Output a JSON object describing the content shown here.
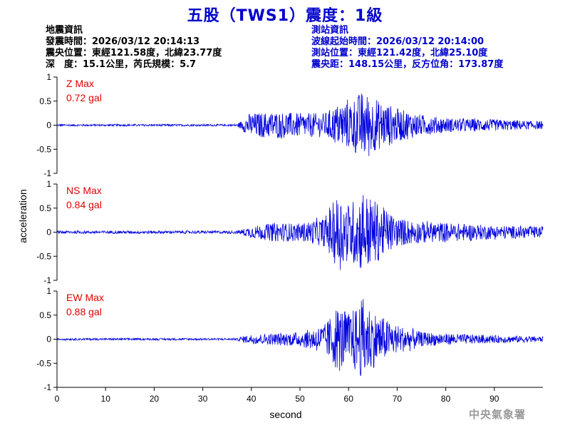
{
  "title": "五股（TWS1）震度：1級",
  "event_info": {
    "heading": "地震資訊",
    "origin_time": "發震時間：2026/03/12 20:14:13",
    "epicenter": "震央位置：東經121.58度，北緯23.77度",
    "depth_magnitude": "深　度：15.1公里，芮氏規模：5.7"
  },
  "station_info": {
    "heading": "測站資訊",
    "wave_start": "波線起始時間：2026/03/12 20:14:00",
    "location": "測站位置：東經121.42度，北緯25.10度",
    "distance": "震央距：148.15公里，反方位角：173.87度"
  },
  "watermark": "中央氣象署",
  "colors": {
    "title": "#0000cc",
    "trace": "#0000dd",
    "max_label": "#e00000",
    "station_text": "#0000cc"
  },
  "chart_data": {
    "type": "line",
    "xlabel": "second",
    "ylabel": "acceleration",
    "xlim": [
      0,
      100
    ],
    "ylim": [
      -1,
      1
    ],
    "xticks": [
      0,
      10,
      20,
      30,
      40,
      50,
      60,
      70,
      80,
      90
    ],
    "yticks": [
      1,
      0.5,
      0,
      -0.5,
      -1
    ],
    "xtick_labels": [
      "0",
      "10",
      "20",
      "30",
      "40",
      "50",
      "60",
      "70",
      "80",
      "90"
    ],
    "ytick_labels": [
      "1",
      "0.5",
      "0",
      "-0.5",
      "-1"
    ],
    "grid": false,
    "panels": [
      {
        "component": "Z",
        "label": "Z Max",
        "max_value": "0.72 gal",
        "envelope": {
          "x": [
            0,
            37,
            38,
            40,
            45,
            50,
            55,
            58,
            60,
            62,
            63,
            65,
            68,
            70,
            75,
            80,
            90,
            100
          ],
          "y": [
            0.02,
            0.02,
            0.1,
            0.25,
            0.28,
            0.25,
            0.25,
            0.45,
            0.5,
            0.65,
            0.72,
            0.55,
            0.45,
            0.35,
            0.22,
            0.15,
            0.12,
            0.08
          ]
        }
      },
      {
        "component": "NS",
        "label": "NS Max",
        "max_value": "0.84 gal",
        "envelope": {
          "x": [
            0,
            37,
            38,
            40,
            45,
            50,
            55,
            58,
            60,
            62,
            63,
            65,
            68,
            70,
            75,
            80,
            90,
            100
          ],
          "y": [
            0.03,
            0.03,
            0.06,
            0.12,
            0.2,
            0.18,
            0.3,
            0.82,
            0.6,
            0.75,
            0.84,
            0.7,
            0.45,
            0.3,
            0.22,
            0.2,
            0.14,
            0.12
          ]
        }
      },
      {
        "component": "EW",
        "label": "EW Max",
        "max_value": "0.88 gal",
        "envelope": {
          "x": [
            0,
            37,
            38,
            40,
            45,
            50,
            55,
            58,
            60,
            62,
            63,
            65,
            68,
            70,
            75,
            80,
            90,
            100
          ],
          "y": [
            0.02,
            0.02,
            0.06,
            0.1,
            0.12,
            0.15,
            0.3,
            0.7,
            0.55,
            0.7,
            0.88,
            0.6,
            0.4,
            0.3,
            0.15,
            0.12,
            0.08,
            0.06
          ]
        }
      }
    ]
  }
}
